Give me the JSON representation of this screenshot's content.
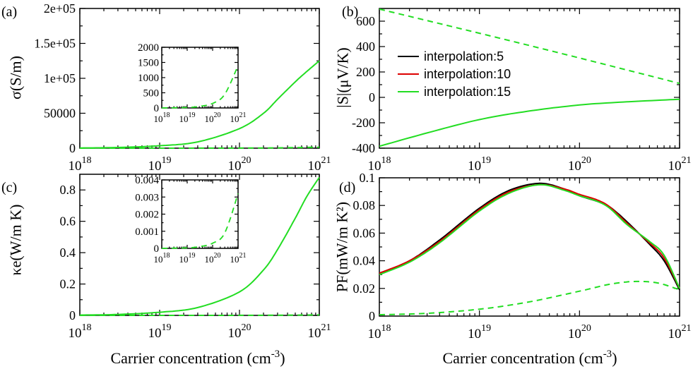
{
  "figure": {
    "x_axis_label": "Carrier concentration (cm",
    "x_axis_label_sup": "-3",
    "x_axis_label_end": ")",
    "x_tick_base": "10",
    "x_tick_exponents": [
      "18",
      "19",
      "20",
      "21"
    ]
  },
  "legend": {
    "items": [
      {
        "label": "interpolation:5",
        "color": "#000000"
      },
      {
        "label": "interpolation:10",
        "color": "#dd0000"
      },
      {
        "label": "interpolation:15",
        "color": "#22dd22"
      }
    ]
  },
  "colors": {
    "series_interp5": "#000000",
    "series_interp10": "#dd0000",
    "series_interp15": "#22dd22"
  },
  "chart_data": [
    {
      "panel": "(a)",
      "type": "line",
      "ylabel": "σ(S/m)",
      "x_scale": "log",
      "xlim": [
        1e+18,
        1e+21
      ],
      "ylim": [
        0,
        200000
      ],
      "yticks": [
        0,
        50000,
        100000,
        150000,
        200000
      ],
      "ytick_labels": [
        "0",
        "50000",
        "1e+05",
        "1.5e+05",
        "2e+05"
      ],
      "series": [
        {
          "style": "solid",
          "x": [
            1e+18,
            3e+18,
            1e+19,
            3e+19,
            1e+20,
            2e+20,
            3e+20,
            5e+20,
            7e+20,
            1e+21
          ],
          "y": [
            300,
            1000,
            3500,
            9000,
            28000,
            50000,
            70000,
            95000,
            110000,
            125000
          ]
        },
        {
          "style": "dashed",
          "x": [
            1e+18,
            1e+19,
            1e+20,
            3e+20,
            1e+21
          ],
          "y": [
            0,
            10,
            150,
            450,
            1400
          ]
        }
      ],
      "inset": {
        "x_scale": "log",
        "xlim": [
          1e+18,
          1e+21
        ],
        "ylim": [
          0,
          2000
        ],
        "yticks": [
          0,
          500,
          1000,
          1500,
          2000
        ],
        "ytick_labels": [
          "0",
          "500",
          "1000",
          "1500",
          "2000"
        ],
        "series": [
          {
            "style": "dashed",
            "x": [
              1e+18,
              1e+19,
              3e+19,
              1e+20,
              3e+20,
              1e+21
            ],
            "y": [
              0,
              15,
              50,
              150,
              450,
              1400
            ]
          }
        ]
      }
    },
    {
      "panel": "(b)",
      "type": "line",
      "ylabel": "|S|(μV/K)",
      "x_scale": "log",
      "xlim": [
        1e+18,
        1e+21
      ],
      "ylim": [
        -400,
        700
      ],
      "yticks": [
        -400,
        -200,
        0,
        200,
        400,
        600
      ],
      "ytick_labels": [
        "-400",
        "-200",
        "0",
        "200",
        "400",
        "600"
      ],
      "series": [
        {
          "style": "dashed",
          "x": [
            1e+18,
            1e+19,
            1e+20,
            1e+21
          ],
          "y": [
            695,
            505,
            310,
            110
          ]
        },
        {
          "style": "solid",
          "x": [
            1e+18,
            3e+18,
            1e+19,
            3e+19,
            1e+20,
            3e+20,
            1e+21
          ],
          "y": [
            -385,
            -280,
            -175,
            -110,
            -60,
            -35,
            -15
          ]
        }
      ]
    },
    {
      "panel": "(c)",
      "type": "line",
      "ylabel": "κe(W/m K)",
      "x_scale": "log",
      "xlim": [
        1e+18,
        1e+21
      ],
      "ylim": [
        0,
        0.9
      ],
      "yticks": [
        0,
        0.2,
        0.4,
        0.6,
        0.8
      ],
      "ytick_labels": [
        "0",
        "0.2",
        "0.4",
        "0.6",
        "0.8"
      ],
      "series": [
        {
          "style": "solid",
          "x": [
            1e+18,
            3e+18,
            1e+19,
            3e+19,
            1e+20,
            2e+20,
            3e+20,
            5e+20,
            7e+20,
            1e+21
          ],
          "y": [
            0.002,
            0.006,
            0.02,
            0.05,
            0.15,
            0.29,
            0.42,
            0.62,
            0.76,
            0.88
          ]
        },
        {
          "style": "dashed",
          "x": [
            1e+18,
            1e+20,
            1e+21
          ],
          "y": [
            0,
            0.0003,
            0.003
          ]
        }
      ],
      "inset": {
        "x_scale": "log",
        "xlim": [
          1e+18,
          1e+21
        ],
        "ylim": [
          0,
          0.004
        ],
        "yticks": [
          0,
          0.001,
          0.002,
          0.003,
          0.004
        ],
        "ytick_labels": [
          "0",
          "0.001",
          "0.002",
          "0.003",
          "0.004"
        ],
        "series": [
          {
            "style": "dashed",
            "x": [
              1e+18,
              1e+19,
              3e+19,
              1e+20,
              3e+20,
              1e+21
            ],
            "y": [
              0,
              3e-05,
              0.0001,
              0.0003,
              0.0009,
              0.0032
            ]
          }
        ]
      }
    },
    {
      "panel": "(d)",
      "type": "line",
      "ylabel": "PF(mW/m K²)",
      "x_scale": "log",
      "xlim": [
        1e+18,
        1e+21
      ],
      "ylim": [
        0,
        0.1
      ],
      "yticks": [
        0,
        0.02,
        0.04,
        0.06,
        0.08,
        0.1
      ],
      "ytick_labels": [
        "0",
        "0.02",
        "0.04",
        "0.06",
        "0.08",
        "0.1"
      ],
      "series": [
        {
          "name": "interpolation:5",
          "style": "solid",
          "color": "#000000",
          "x": [
            1e+18,
            2e+18,
            4e+18,
            1e+19,
            2e+19,
            4e+19,
            7e+19,
            1e+20,
            1.5e+20,
            2e+20,
            3e+20,
            5e+20,
            7e+20,
            1e+21
          ],
          "y": [
            0.031,
            0.04,
            0.055,
            0.078,
            0.091,
            0.096,
            0.092,
            0.087,
            0.083,
            0.079,
            0.068,
            0.052,
            0.04,
            0.019
          ]
        },
        {
          "name": "interpolation:10",
          "style": "solid",
          "color": "#dd0000",
          "x": [
            1e+18,
            2e+18,
            4e+18,
            1e+19,
            2e+19,
            4e+19,
            7e+19,
            1e+20,
            1.5e+20,
            2e+20,
            3e+20,
            5e+20,
            7e+20,
            1e+21
          ],
          "y": [
            0.031,
            0.04,
            0.054,
            0.077,
            0.09,
            0.095,
            0.092,
            0.088,
            0.084,
            0.079,
            0.067,
            0.053,
            0.042,
            0.02
          ]
        },
        {
          "name": "interpolation:15",
          "style": "solid",
          "color": "#22dd22",
          "x": [
            1e+18,
            2e+18,
            4e+18,
            1e+19,
            2e+19,
            4e+19,
            7e+19,
            1e+20,
            1.5e+20,
            2e+20,
            3e+20,
            5e+20,
            7e+20,
            1e+21
          ],
          "y": [
            0.03,
            0.039,
            0.053,
            0.076,
            0.089,
            0.095,
            0.091,
            0.087,
            0.083,
            0.078,
            0.066,
            0.054,
            0.044,
            0.02
          ]
        },
        {
          "style": "dashed",
          "color": "#22dd22",
          "x": [
            1e+18,
            3e+18,
            1e+19,
            3e+19,
            1e+20,
            2e+20,
            3.5e+20,
            6e+20,
            1e+21
          ],
          "y": [
            0.001,
            0.002,
            0.005,
            0.01,
            0.018,
            0.023,
            0.025,
            0.024,
            0.019
          ]
        }
      ]
    }
  ]
}
